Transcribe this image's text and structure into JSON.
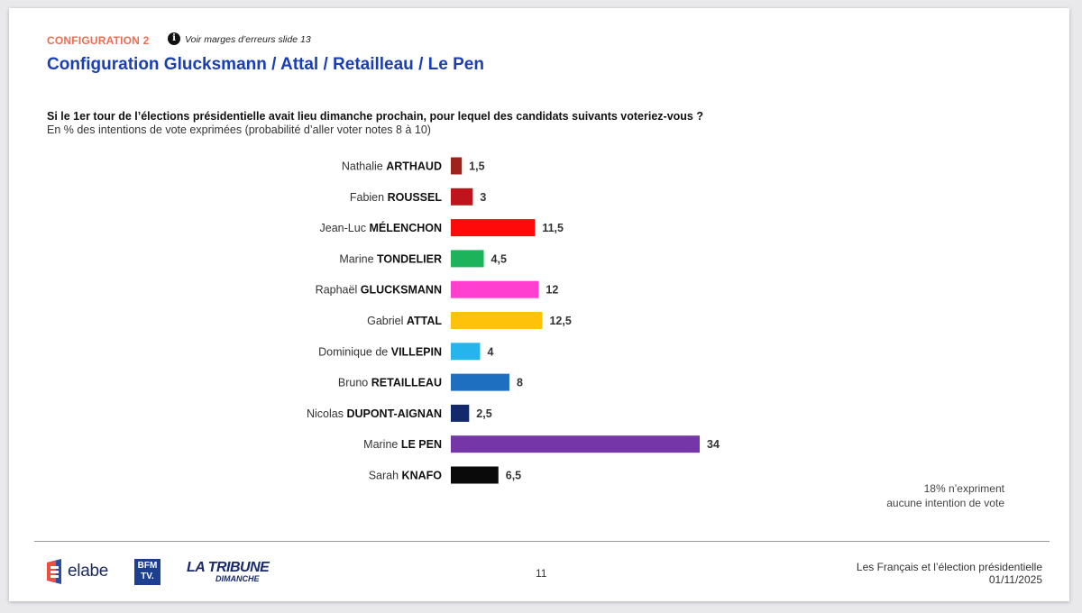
{
  "header": {
    "config_tag": "CONFIGURATION 2",
    "info_icon": "info-circle-icon",
    "info_text": "Voir marges d’erreurs slide 13",
    "title": "Configuration Glucksmann / Attal / Retailleau / Le Pen"
  },
  "question": "Si le 1er tour de l’élections présidentielle avait lieu dimanche prochain, pour lequel des candidats suivants voteriez-vous ?",
  "subquestion": "En % des intentions de vote exprimées (probabilité d’aller voter notes 8 à 10)",
  "chart_data": {
    "type": "bar",
    "orientation": "horizontal",
    "categories": [
      {
        "first": "Nathalie",
        "last": "ARTHAUD"
      },
      {
        "first": "Fabien",
        "last": "ROUSSEL"
      },
      {
        "first": "Jean-Luc",
        "last": "MÉLENCHON"
      },
      {
        "first": "Marine",
        "last": "TONDELIER"
      },
      {
        "first": "Raphaël",
        "last": "GLUCKSMANN"
      },
      {
        "first": "Gabriel",
        "last": "ATTAL"
      },
      {
        "first": "Dominique de",
        "last": "VILLEPIN"
      },
      {
        "first": "Bruno",
        "last": "RETAILLEAU"
      },
      {
        "first": "Nicolas",
        "last": "DUPONT-AIGNAN"
      },
      {
        "first": "Marine",
        "last": "LE PEN"
      },
      {
        "first": "Sarah",
        "last": "KNAFO"
      }
    ],
    "values": [
      1.5,
      3,
      11.5,
      4.5,
      12,
      12.5,
      4,
      8,
      2.5,
      34,
      6.5
    ],
    "value_labels": [
      "1,5",
      "3",
      "11,5",
      "4,5",
      "12",
      "12,5",
      "4",
      "8",
      "2,5",
      "34",
      "6,5"
    ],
    "colors": [
      "#a0221c",
      "#c0141c",
      "#ff0a0a",
      "#1db35a",
      "#ff3fcf",
      "#ffc20a",
      "#25b4ec",
      "#1f6fc0",
      "#122a6b",
      "#7537a8",
      "#0a0a0a"
    ],
    "xlim": [
      0,
      34
    ],
    "grid": false,
    "legend": "none"
  },
  "note": {
    "line1": "18% n’expriment",
    "line2": "aucune intention de vote"
  },
  "footer": {
    "logo_elabe": "elabe",
    "logo_bfm": [
      "BFM",
      "TV."
    ],
    "logo_tribune": "LA TRIBUNE",
    "logo_tribune_sub": "DIMANCHE",
    "page_number": "11",
    "study_title": "Les Français et l’élection présidentielle",
    "date": "01/11/2025"
  }
}
